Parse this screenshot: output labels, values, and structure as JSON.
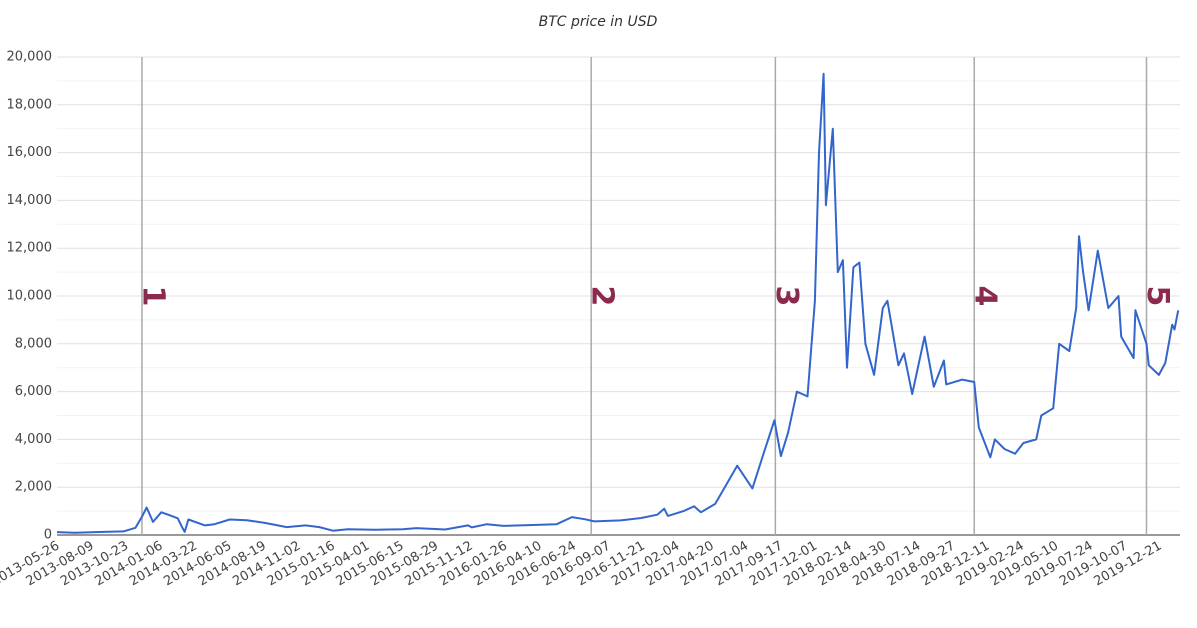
{
  "chart_data": {
    "type": "line",
    "title": "BTC price in USD",
    "color": "#3366cc",
    "grid": true,
    "xlim": [
      "2013-05-23",
      "2020-02-01"
    ],
    "xticks": [
      "2013-05-26",
      "2013-08-09",
      "2013-10-23",
      "2014-01-06",
      "2014-03-22",
      "2014-06-05",
      "2014-08-19",
      "2014-11-02",
      "2015-01-16",
      "2015-04-01",
      "2015-06-15",
      "2015-08-29",
      "2015-11-12",
      "2016-01-26",
      "2016-04-10",
      "2016-06-24",
      "2016-09-07",
      "2016-11-21",
      "2017-02-04",
      "2017-04-20",
      "2017-07-04",
      "2017-09-17",
      "2017-12-01",
      "2018-02-14",
      "2018-04-30",
      "2018-07-14",
      "2018-09-27",
      "2018-12-11",
      "2019-02-24",
      "2019-05-10",
      "2019-07-24",
      "2019-10-07",
      "2019-12-21"
    ],
    "ylim": [
      0,
      20000
    ],
    "yticks": [
      0,
      {
        "value": 2000,
        "label": "2,000"
      },
      {
        "value": 4000,
        "label": "4,000"
      },
      {
        "value": 6000,
        "label": "6,000"
      },
      {
        "value": 8000,
        "label": "8,000"
      },
      {
        "value": 10000,
        "label": "10,000"
      },
      {
        "value": 12000,
        "label": "12,000"
      },
      {
        "value": 14000,
        "label": "14,000"
      },
      {
        "value": 16000,
        "label": "16,000"
      },
      {
        "value": 18000,
        "label": "18,000"
      },
      {
        "value": 20000,
        "label": "20,000"
      }
    ],
    "minor_yticks": [
      1000,
      3000,
      5000,
      7000,
      9000,
      11000,
      13000,
      15000,
      17000,
      19000
    ],
    "annotations": [
      {
        "x": "2013-11-24",
        "label": "1"
      },
      {
        "x": "2016-07-29",
        "label": "2"
      },
      {
        "x": "2017-09-03",
        "label": "3"
      },
      {
        "x": "2018-11-10",
        "label": "4"
      },
      {
        "x": "2019-11-20",
        "label": "5"
      }
    ],
    "x": [
      "2013-05-23",
      "2013-07-01",
      "2013-09-01",
      "2013-10-15",
      "2013-11-10",
      "2013-11-25",
      "2013-12-04",
      "2013-12-10",
      "2013-12-18",
      "2014-01-05",
      "2014-01-20",
      "2014-02-10",
      "2014-02-20",
      "2014-02-25",
      "2014-03-05",
      "2014-04-10",
      "2014-05-01",
      "2014-06-03",
      "2014-07-10",
      "2014-08-20",
      "2014-10-05",
      "2014-11-15",
      "2014-12-15",
      "2015-01-14",
      "2015-02-15",
      "2015-04-15",
      "2015-06-15",
      "2015-07-15",
      "2015-09-15",
      "2015-11-04",
      "2015-11-12",
      "2015-12-15",
      "2016-01-20",
      "2016-03-15",
      "2016-05-15",
      "2016-06-17",
      "2016-07-15",
      "2016-08-05",
      "2016-10-01",
      "2016-11-15",
      "2016-12-20",
      "2017-01-04",
      "2017-01-12",
      "2017-02-15",
      "2017-03-10",
      "2017-03-25",
      "2017-04-25",
      "2017-05-25",
      "2017-06-12",
      "2017-07-15",
      "2017-08-05",
      "2017-09-01",
      "2017-09-15",
      "2017-10-01",
      "2017-10-20",
      "2017-11-12",
      "2017-11-28",
      "2017-12-07",
      "2017-12-17",
      "2017-12-22",
      "2018-01-06",
      "2018-01-17",
      "2018-01-28",
      "2018-02-06",
      "2018-02-20",
      "2018-03-05",
      "2018-03-18",
      "2018-04-06",
      "2018-04-25",
      "2018-05-05",
      "2018-05-29",
      "2018-06-10",
      "2018-06-28",
      "2018-07-25",
      "2018-08-14",
      "2018-09-05",
      "2018-09-10",
      "2018-10-15",
      "2018-11-10",
      "2018-11-20",
      "2018-12-15",
      "2018-12-25",
      "2019-01-15",
      "2019-02-07",
      "2019-02-25",
      "2019-03-25",
      "2019-04-05",
      "2019-05-01",
      "2019-05-14",
      "2019-06-05",
      "2019-06-20",
      "2019-06-26",
      "2019-07-05",
      "2019-07-17",
      "2019-08-06",
      "2019-08-29",
      "2019-09-20",
      "2019-09-26",
      "2019-10-23",
      "2019-10-27",
      "2019-11-20",
      "2019-11-25",
      "2019-12-17",
      "2019-12-31",
      "2020-01-15",
      "2020-01-20",
      "2020-01-28"
    ],
    "values": [
      120,
      90,
      130,
      150,
      300,
      800,
      1150,
      900,
      550,
      950,
      850,
      700,
      300,
      130,
      650,
      400,
      450,
      650,
      620,
      500,
      330,
      400,
      330,
      180,
      240,
      220,
      240,
      290,
      230,
      400,
      320,
      450,
      380,
      415,
      450,
      750,
      660,
      570,
      610,
      710,
      850,
      1100,
      800,
      1000,
      1200,
      950,
      1300,
      2300,
      2900,
      1950,
      3200,
      4800,
      3300,
      4300,
      6000,
      5800,
      9800,
      16000,
      19300,
      13800,
      17000,
      11000,
      11500,
      7000,
      11200,
      11400,
      8000,
      6700,
      9500,
      9800,
      7100,
      7600,
      5900,
      8300,
      6200,
      7300,
      6300,
      6500,
      6400,
      4500,
      3250,
      4000,
      3600,
      3400,
      3850,
      4000,
      5000,
      5300,
      8000,
      7700,
      9500,
      12500,
      11000,
      9400,
      11900,
      9500,
      10000,
      8300,
      7400,
      9400,
      8000,
      7100,
      6700,
      7200,
      8800,
      8600,
      9400
    ]
  }
}
